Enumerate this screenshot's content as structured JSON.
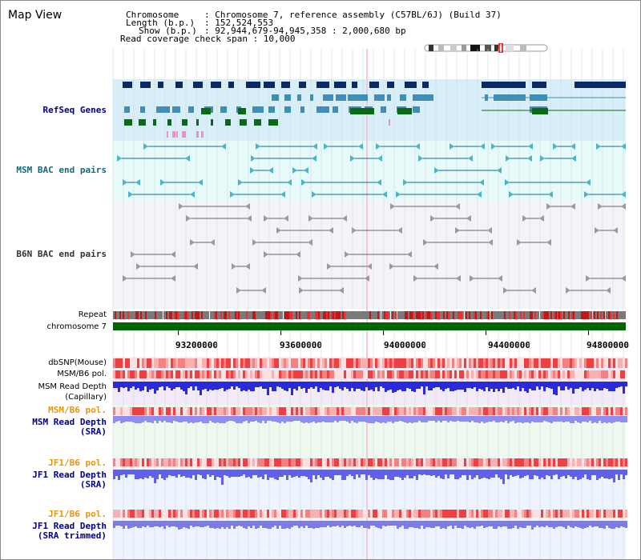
{
  "title": "Map View",
  "header": {
    "line1_key": "Chromosome",
    "line1_val": ": Chromosome 7, reference assembly (C57BL/6J) (Build 37)",
    "line2_key": "Length (b.p.)",
    "line2_val": ": 152,524,553",
    "line3_key": "Show (b.p.)",
    "line3_val": ": 92,944,679-94,945,358 : 2,000,680 bp",
    "line4": "Read coverage check span : 10,000"
  },
  "tracks": {
    "refseq": "RefSeq Genes",
    "msm_bac": "MSM BAC end pairs",
    "b6n_bac": "B6N BAC end pairs",
    "repeat": "Repeat",
    "chromosome": "chromosome 7",
    "dbsnp": "dbSNP(Mouse)",
    "msm_b6_pol": "MSM/B6 pol.",
    "msm_read_depth_cap_1": "MSM Read Depth",
    "msm_read_depth_cap_2": "(Capillary)",
    "msm_b6_pol_2": "MSM/B6 pol.",
    "msm_read_depth_sra_1": "MSM Read Depth",
    "msm_read_depth_sra_2": "(SRA)",
    "jf1_b6_pol": "JF1/B6 pol.",
    "jf1_read_depth_sra_1": "JF1 Read Depth",
    "jf1_read_depth_sra_2": "(SRA)",
    "jf1_b6_pol_2": "JF1/B6 pol.",
    "jf1_read_depth_trim_1": "JF1 Read Depth",
    "jf1_read_depth_trim_2": "(SRA trimmed)"
  },
  "axis": {
    "start_bp": 92944679,
    "end_bp": 94945358,
    "ticks": [
      "93200000",
      "93600000",
      "94000000",
      "94400000",
      "94800000"
    ]
  },
  "colors": {
    "refseq_bg": "#d8eef8",
    "msm_bg": "#e6fafa",
    "b6n_bg": "#f4f4f8",
    "snp_bg": "#f2eaf6",
    "msm_sra_bg": "#eef8ee",
    "jf1_bg": "#eef4ff",
    "gene_navy": "#0a2a66",
    "gene_teal": "#3f8fb5",
    "gene_green": "#0a6a14",
    "msm_line": "#136d8a",
    "b6n_line": "#666666",
    "depth_blue": "#2a2ad8",
    "depth_light_blue": "#8e8ef0",
    "chromosome_green": "#006600",
    "label_blue": "#00008b",
    "label_orange": "#e8960a"
  }
}
